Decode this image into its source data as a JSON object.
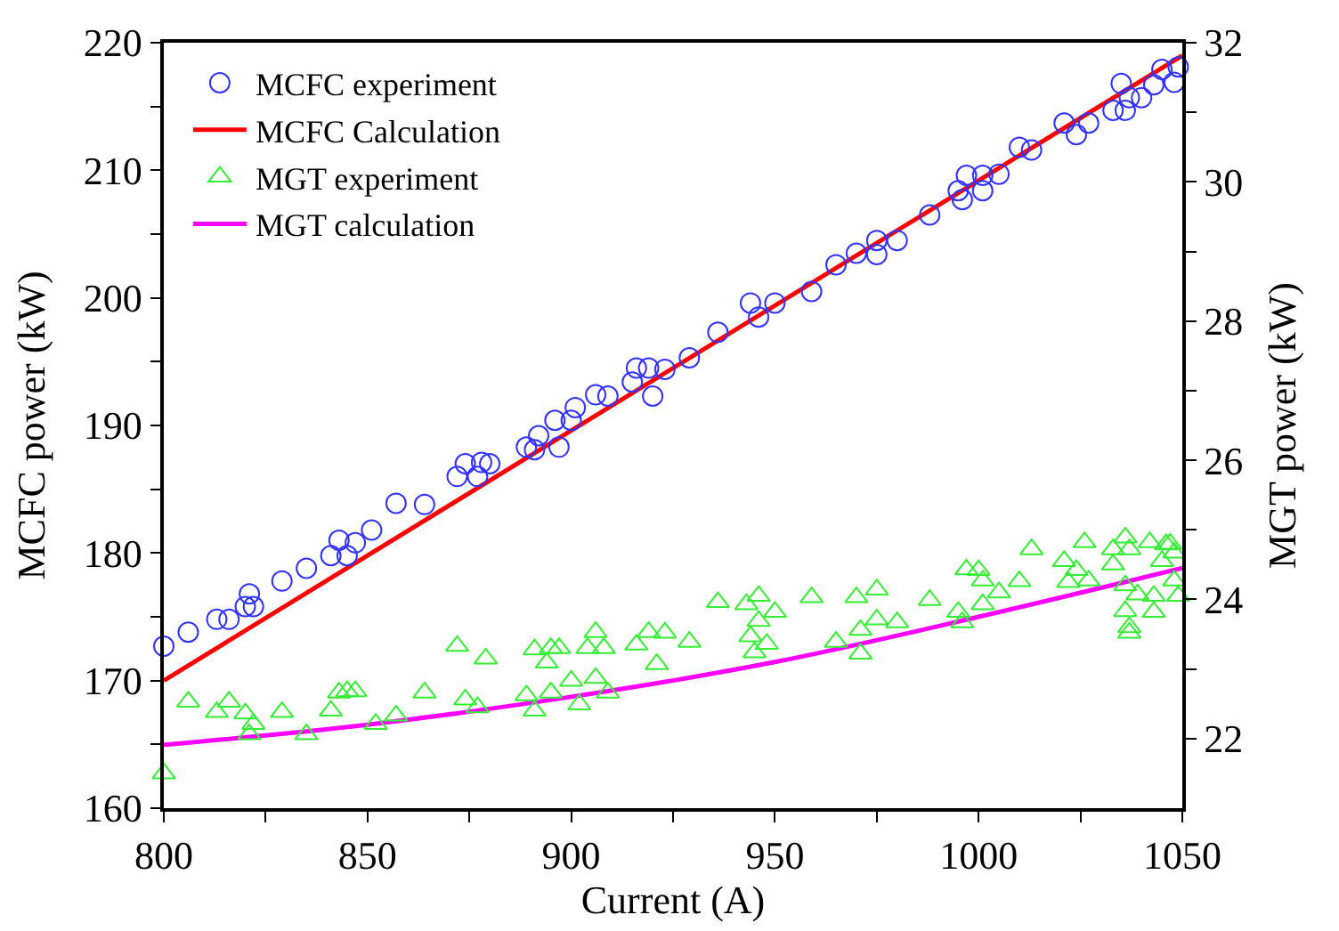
{
  "chart_data": {
    "type": "scatter",
    "xlabel": "Current (A)",
    "ylabel": "MCFC power (kW)",
    "y2label": "MGT power (kW)",
    "xlim": [
      800,
      1050
    ],
    "xticks": [
      800,
      {
        "value": 825,
        "label": null
      },
      850,
      {
        "value": 875,
        "label": null
      },
      900,
      {
        "value": 925,
        "label": null
      },
      950,
      {
        "value": 975,
        "label": null
      },
      1000,
      {
        "value": 1025,
        "label": null
      },
      1050
    ],
    "ylim": [
      160,
      220
    ],
    "yticks": [
      160,
      {
        "value": 165,
        "label": null
      },
      170,
      {
        "value": 175,
        "label": null
      },
      180,
      {
        "value": 185,
        "label": null
      },
      190,
      {
        "value": 195,
        "label": null
      },
      200,
      {
        "value": 205,
        "label": null
      },
      210,
      {
        "value": 215,
        "label": null
      },
      220
    ],
    "y2lim": [
      21,
      32
    ],
    "y2ticks": [
      22,
      {
        "value": 23,
        "label": null
      },
      24,
      {
        "value": 25,
        "label": null
      },
      26,
      {
        "value": 27,
        "label": null
      },
      28,
      {
        "value": 29,
        "label": null
      },
      30,
      {
        "value": 31,
        "label": null
      },
      32
    ],
    "grid": false,
    "legend": "top left",
    "series": [
      {
        "name": "MCFC experiment",
        "marker": "circle",
        "color": "#3333ff",
        "x": [
          800,
          806,
          813,
          816,
          820,
          821,
          822,
          829,
          835,
          841,
          843,
          845,
          847,
          851,
          857,
          864,
          872,
          874,
          877,
          878,
          880,
          889,
          891,
          892,
          896,
          897,
          900,
          901,
          906,
          909,
          915,
          916,
          919,
          920,
          923,
          929,
          936,
          944,
          946,
          950,
          959,
          965,
          970,
          975,
          975,
          980,
          988,
          995,
          996,
          997,
          1001,
          1001,
          1005,
          1010,
          1013,
          1021,
          1024,
          1027,
          1033,
          1035,
          1036,
          1037,
          1040,
          1043,
          1045,
          1048,
          1049
        ],
        "values": [
          172.7,
          173.8,
          174.8,
          174.8,
          175.8,
          176.8,
          175.8,
          177.8,
          178.8,
          179.8,
          181.0,
          179.8,
          180.8,
          181.8,
          183.9,
          183.8,
          186.0,
          187.0,
          186.0,
          187.1,
          187.0,
          188.3,
          188.1,
          189.2,
          190.4,
          188.3,
          190.4,
          191.4,
          192.4,
          192.3,
          193.4,
          194.5,
          194.5,
          192.3,
          194.4,
          195.3,
          197.3,
          199.6,
          198.5,
          199.6,
          200.5,
          202.6,
          203.5,
          204.5,
          203.4,
          204.5,
          206.5,
          208.4,
          207.7,
          209.6,
          209.6,
          208.4,
          209.7,
          211.8,
          211.6,
          213.7,
          212.8,
          213.7,
          214.7,
          216.8,
          214.7,
          215.7,
          215.7,
          216.7,
          217.9,
          216.9,
          218.1
        ]
      },
      {
        "name": "MCFC Calculation",
        "type": "line",
        "marker": "none",
        "line_style": "solid",
        "color": "#ff0000",
        "x": [
          800,
          1050
        ],
        "values": [
          170,
          219
        ]
      },
      {
        "name": "MGT experiment",
        "marker": "triangle",
        "axis": "y2",
        "color": "#33ee33",
        "x": [
          800,
          806,
          813,
          816,
          820,
          822,
          821,
          829,
          835,
          841,
          843,
          845,
          847,
          852,
          857,
          864,
          872,
          874,
          877,
          879,
          889,
          891,
          891,
          894,
          895,
          897,
          895,
          900,
          902,
          904,
          906,
          906,
          908,
          909,
          916,
          919,
          923,
          921,
          929,
          936,
          943,
          944,
          945,
          946,
          946,
          948,
          950,
          959,
          965,
          970,
          971,
          971,
          975,
          975,
          980,
          988,
          995,
          996,
          997,
          1000,
          1001,
          1001,
          1005,
          1010,
          1013,
          1021,
          1022,
          1024,
          1026,
          1027,
          1033,
          1033,
          1036,
          1036,
          1036,
          1037,
          1037,
          1037,
          1039,
          1042,
          1043,
          1043,
          1045,
          1046,
          1048,
          1048,
          1049,
          1047
        ],
        "values": [
          21.5,
          22.53,
          22.38,
          22.53,
          22.36,
          22.21,
          22.06,
          22.38,
          22.06,
          22.4,
          22.66,
          22.68,
          22.68,
          22.21,
          22.33,
          22.66,
          23.33,
          22.56,
          22.45,
          23.15,
          22.62,
          23.28,
          22.4,
          23.09,
          23.3,
          23.3,
          22.66,
          22.83,
          22.49,
          23.3,
          23.53,
          22.87,
          23.3,
          22.66,
          23.35,
          23.53,
          23.52,
          23.07,
          23.39,
          23.96,
          23.93,
          23.47,
          23.24,
          24.05,
          23.69,
          23.36,
          23.82,
          24.03,
          23.39,
          24.03,
          23.56,
          23.22,
          24.14,
          23.71,
          23.67,
          23.99,
          23.82,
          23.67,
          24.43,
          24.42,
          24.27,
          23.93,
          24.1,
          24.26,
          24.72,
          24.55,
          24.25,
          24.42,
          24.82,
          24.27,
          24.72,
          24.5,
          24.89,
          24.2,
          23.83,
          23.6,
          23.52,
          24.72,
          24.07,
          24.82,
          23.82,
          24.05,
          24.55,
          24.79,
          24.67,
          24.27,
          24.05,
          24.8
        ]
      },
      {
        "name": "MGT calculation",
        "type": "line",
        "marker": "none",
        "line_style": "solid",
        "axis": "y2",
        "color": "#ff00ff",
        "x": [
          800,
          850,
          900,
          950,
          1000,
          1050
        ],
        "values": [
          21.91,
          22.2,
          22.6,
          23.1,
          23.75,
          24.45
        ]
      }
    ]
  }
}
